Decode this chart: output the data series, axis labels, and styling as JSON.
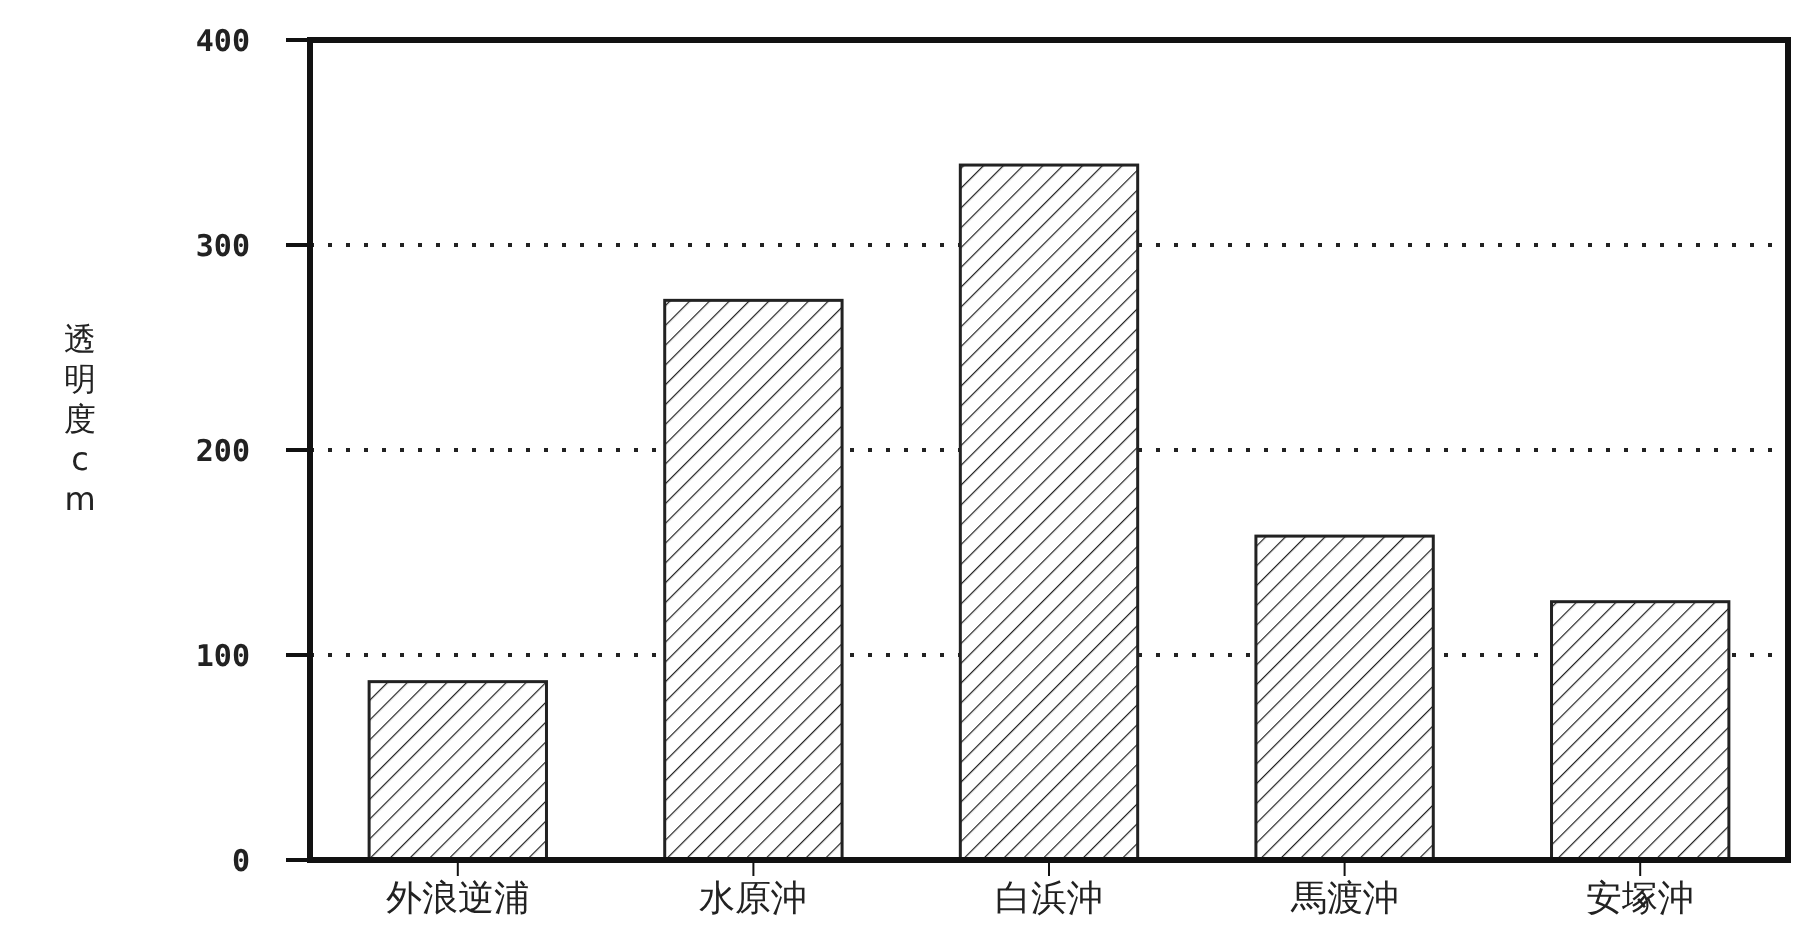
{
  "chart_data": {
    "type": "bar",
    "ylabel": "透明度cm",
    "categories": [
      "外浪逆浦",
      "水原沖",
      "白浜沖",
      "馬渡沖",
      "安塚沖"
    ],
    "values": [
      87,
      273,
      339,
      158,
      126
    ],
    "color": "#222222",
    "ylim": [
      0,
      400
    ],
    "yticks": [
      0,
      100,
      200,
      300,
      400
    ],
    "grid": "y"
  }
}
